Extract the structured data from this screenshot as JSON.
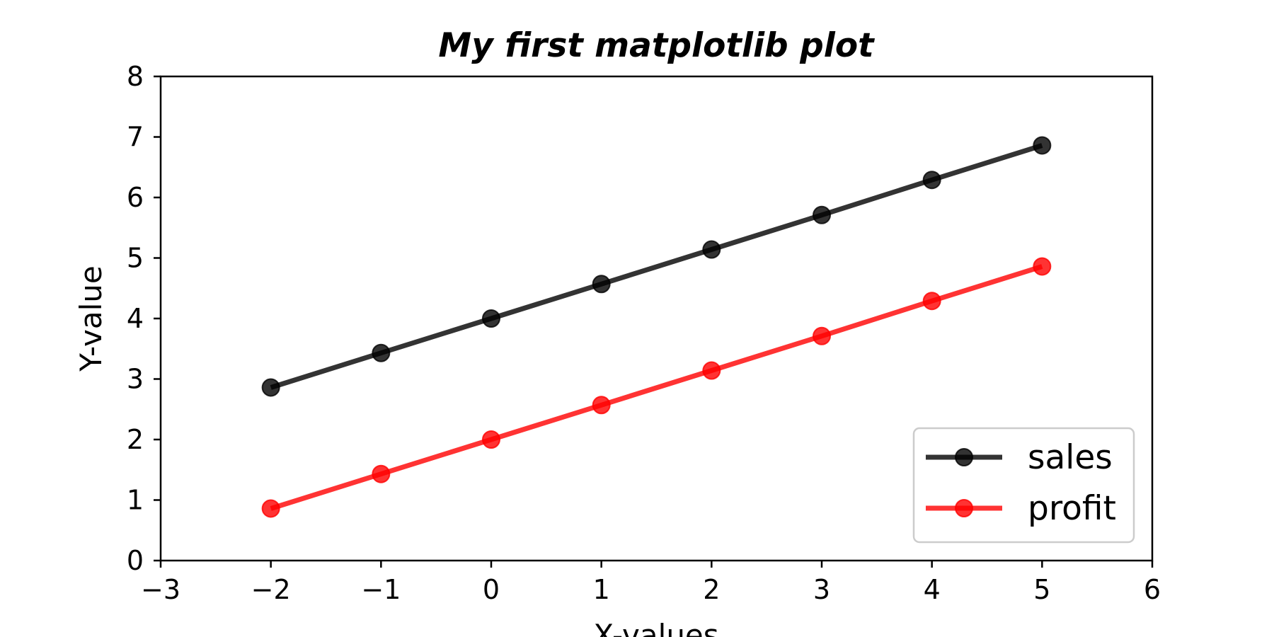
{
  "chart_data": {
    "type": "line",
    "title": "My first matplotlib plot",
    "xlabel": "X-values",
    "ylabel": "Y-value",
    "xlim": [
      -3,
      6
    ],
    "ylim": [
      0,
      8
    ],
    "xticks": [
      -3,
      -2,
      -1,
      0,
      1,
      2,
      3,
      4,
      5,
      6
    ],
    "xtick_labels": [
      "−3",
      "−2",
      "−1",
      "0",
      "1",
      "2",
      "3",
      "4",
      "5",
      "6"
    ],
    "yticks": [
      0,
      1,
      2,
      3,
      4,
      5,
      6,
      7,
      8
    ],
    "ytick_labels": [
      "0",
      "1",
      "2",
      "3",
      "4",
      "5",
      "6",
      "7",
      "8"
    ],
    "x": [
      -2,
      -1,
      0,
      1,
      2,
      3,
      4,
      5
    ],
    "series": [
      {
        "name": "sales",
        "color": "#000000",
        "values": [
          2.86,
          3.43,
          4.0,
          4.57,
          5.14,
          5.71,
          6.29,
          6.86
        ]
      },
      {
        "name": "profit",
        "color": "#ff0000",
        "values": [
          0.86,
          1.43,
          2.0,
          2.57,
          3.14,
          3.71,
          4.29,
          4.86
        ]
      }
    ],
    "grid": false,
    "legend_position": "lower-right"
  }
}
